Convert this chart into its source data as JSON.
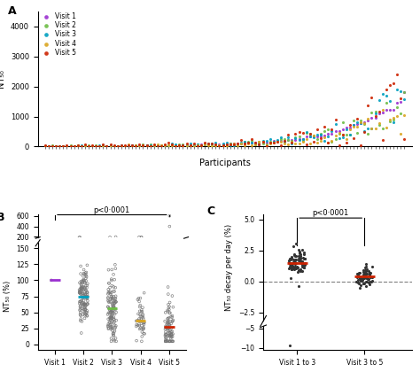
{
  "panel_A": {
    "title": "A",
    "xlabel": "Participants",
    "ylabel": "NT₅₀",
    "ylim": [
      0,
      4500
    ],
    "yticks": [
      0,
      1000,
      2000,
      3000,
      4000
    ],
    "n_participants": 100,
    "visit_colors": [
      "#9B30D0",
      "#6DBD45",
      "#009FBF",
      "#DAA520",
      "#CC2200"
    ],
    "visit_labels": [
      "Visit 1",
      "Visit 2",
      "Visit 3",
      "Visit 4",
      "Visit 5"
    ]
  },
  "panel_B": {
    "title": "B",
    "ylabel": "NT₅₀ (%)",
    "visit_labels": [
      "Visit 1",
      "Visit 2",
      "Visit 3",
      "Visit 4",
      "Visit 5"
    ],
    "visit_colors": [
      "#9B30D0",
      "#009FBF",
      "#6DBD45",
      "#DAA520",
      "#CC2200"
    ],
    "medians": [
      100,
      75,
      57,
      37,
      28
    ],
    "median_colors": [
      "#9B30D0",
      "#009FBF",
      "#6DBD45",
      "#DAA520",
      "#CC2200"
    ],
    "pvalue_text": "p<0·0001",
    "yticks_main": [
      0,
      25,
      50,
      75,
      100,
      125,
      150
    ],
    "yticks_upper": [
      200,
      400,
      600
    ],
    "ylim_main": [
      -8,
      158
    ],
    "ylim_upper": [
      185,
      630
    ]
  },
  "panel_C": {
    "title": "C",
    "ylabel": "NT₅₀ decay per day (%)",
    "group_labels": [
      "Visit 1 to 3",
      "Visit 3 to 5"
    ],
    "medians": [
      1.5,
      0.4
    ],
    "median_color": "#CC2200",
    "pvalue_text": "p<0·0001",
    "yticks_main": [
      -2.5,
      0.0,
      2.5,
      5.0
    ],
    "yticks_lower": [
      -5.0,
      -10.0
    ],
    "ylim_main": [
      -3.2,
      5.4
    ],
    "ylim_lower": [
      -10.5,
      -4.5
    ]
  }
}
